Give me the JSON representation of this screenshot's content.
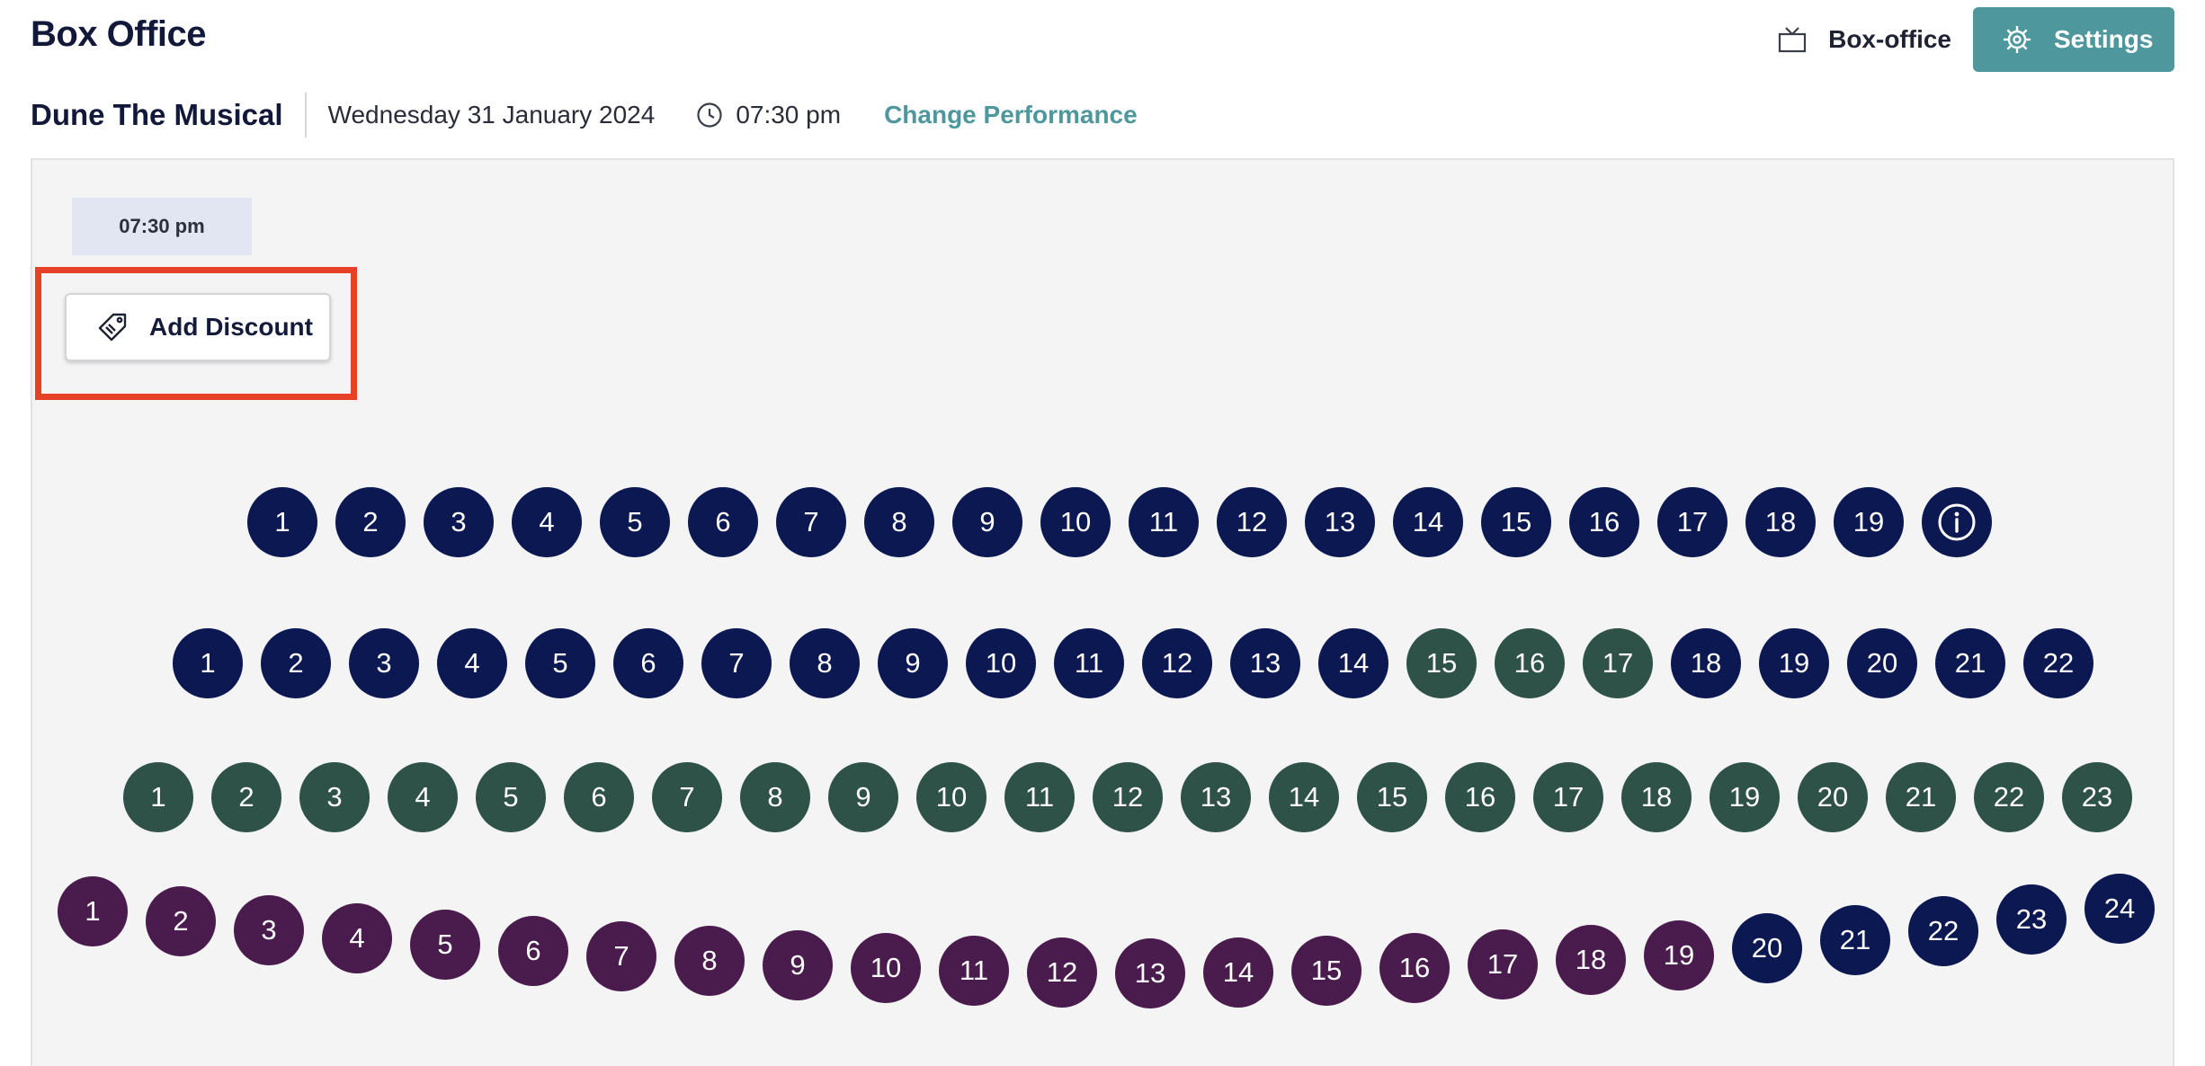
{
  "header": {
    "title": "Box Office",
    "boxoffice_label": "Box-office",
    "settings_label": "Settings"
  },
  "performance": {
    "show_name": "Dune The Musical",
    "date": "Wednesday 31 January 2024",
    "time": "07:30 pm",
    "change_label": "Change Performance"
  },
  "panel": {
    "time_chip": "07:30 pm",
    "discount_label": "Add Discount"
  },
  "seat_colors": {
    "navy": "#0c1852",
    "green": "#2e5247",
    "purple": "#4a1c4e",
    "accent": "#4e979d",
    "highlight": "#e54127"
  },
  "seat_rows": [
    {
      "row": 1,
      "seats": [
        {
          "label": "1",
          "color": "navy"
        },
        {
          "label": "2",
          "color": "navy"
        },
        {
          "label": "3",
          "color": "navy"
        },
        {
          "label": "4",
          "color": "navy"
        },
        {
          "label": "5",
          "color": "navy"
        },
        {
          "label": "6",
          "color": "navy"
        },
        {
          "label": "7",
          "color": "navy"
        },
        {
          "label": "8",
          "color": "navy"
        },
        {
          "label": "9",
          "color": "navy"
        },
        {
          "label": "10",
          "color": "navy"
        },
        {
          "label": "11",
          "color": "navy"
        },
        {
          "label": "12",
          "color": "navy"
        },
        {
          "label": "13",
          "color": "navy"
        },
        {
          "label": "14",
          "color": "navy"
        },
        {
          "label": "15",
          "color": "navy"
        },
        {
          "label": "16",
          "color": "navy"
        },
        {
          "label": "17",
          "color": "navy"
        },
        {
          "label": "18",
          "color": "navy"
        },
        {
          "label": "19",
          "color": "navy"
        }
      ],
      "has_info": true
    },
    {
      "row": 2,
      "seats": [
        {
          "label": "1",
          "color": "navy"
        },
        {
          "label": "2",
          "color": "navy"
        },
        {
          "label": "3",
          "color": "navy"
        },
        {
          "label": "4",
          "color": "navy"
        },
        {
          "label": "5",
          "color": "navy"
        },
        {
          "label": "6",
          "color": "navy"
        },
        {
          "label": "7",
          "color": "navy"
        },
        {
          "label": "8",
          "color": "navy"
        },
        {
          "label": "9",
          "color": "navy"
        },
        {
          "label": "10",
          "color": "navy"
        },
        {
          "label": "11",
          "color": "navy"
        },
        {
          "label": "12",
          "color": "navy"
        },
        {
          "label": "13",
          "color": "navy"
        },
        {
          "label": "14",
          "color": "navy"
        },
        {
          "label": "15",
          "color": "green"
        },
        {
          "label": "16",
          "color": "green"
        },
        {
          "label": "17",
          "color": "green"
        },
        {
          "label": "18",
          "color": "navy"
        },
        {
          "label": "19",
          "color": "navy"
        },
        {
          "label": "20",
          "color": "navy"
        },
        {
          "label": "21",
          "color": "navy"
        },
        {
          "label": "22",
          "color": "navy"
        }
      ]
    },
    {
      "row": 3,
      "seats": [
        {
          "label": "1",
          "color": "green"
        },
        {
          "label": "2",
          "color": "green"
        },
        {
          "label": "3",
          "color": "green"
        },
        {
          "label": "4",
          "color": "green"
        },
        {
          "label": "5",
          "color": "green"
        },
        {
          "label": "6",
          "color": "green"
        },
        {
          "label": "7",
          "color": "green"
        },
        {
          "label": "8",
          "color": "green"
        },
        {
          "label": "9",
          "color": "green"
        },
        {
          "label": "10",
          "color": "green"
        },
        {
          "label": "11",
          "color": "green"
        },
        {
          "label": "12",
          "color": "green"
        },
        {
          "label": "13",
          "color": "green"
        },
        {
          "label": "14",
          "color": "green"
        },
        {
          "label": "15",
          "color": "green"
        },
        {
          "label": "16",
          "color": "green"
        },
        {
          "label": "17",
          "color": "green"
        },
        {
          "label": "18",
          "color": "green"
        },
        {
          "label": "19",
          "color": "green"
        },
        {
          "label": "20",
          "color": "green"
        },
        {
          "label": "21",
          "color": "green"
        },
        {
          "label": "22",
          "color": "green"
        },
        {
          "label": "23",
          "color": "green"
        }
      ]
    },
    {
      "row": 4,
      "seats": [
        {
          "label": "1",
          "color": "purple"
        },
        {
          "label": "2",
          "color": "purple"
        },
        {
          "label": "3",
          "color": "purple"
        },
        {
          "label": "4",
          "color": "purple"
        },
        {
          "label": "5",
          "color": "purple"
        },
        {
          "label": "6",
          "color": "purple"
        },
        {
          "label": "7",
          "color": "purple"
        },
        {
          "label": "8",
          "color": "purple"
        },
        {
          "label": "9",
          "color": "purple"
        },
        {
          "label": "10",
          "color": "purple"
        },
        {
          "label": "11",
          "color": "purple"
        },
        {
          "label": "12",
          "color": "purple"
        },
        {
          "label": "13",
          "color": "purple"
        },
        {
          "label": "14",
          "color": "purple"
        },
        {
          "label": "15",
          "color": "purple"
        },
        {
          "label": "16",
          "color": "purple"
        },
        {
          "label": "17",
          "color": "purple"
        },
        {
          "label": "18",
          "color": "purple"
        },
        {
          "label": "19",
          "color": "purple"
        },
        {
          "label": "20",
          "color": "navy"
        },
        {
          "label": "21",
          "color": "navy"
        },
        {
          "label": "22",
          "color": "navy"
        },
        {
          "label": "23",
          "color": "navy"
        },
        {
          "label": "24",
          "color": "navy"
        }
      ]
    }
  ]
}
